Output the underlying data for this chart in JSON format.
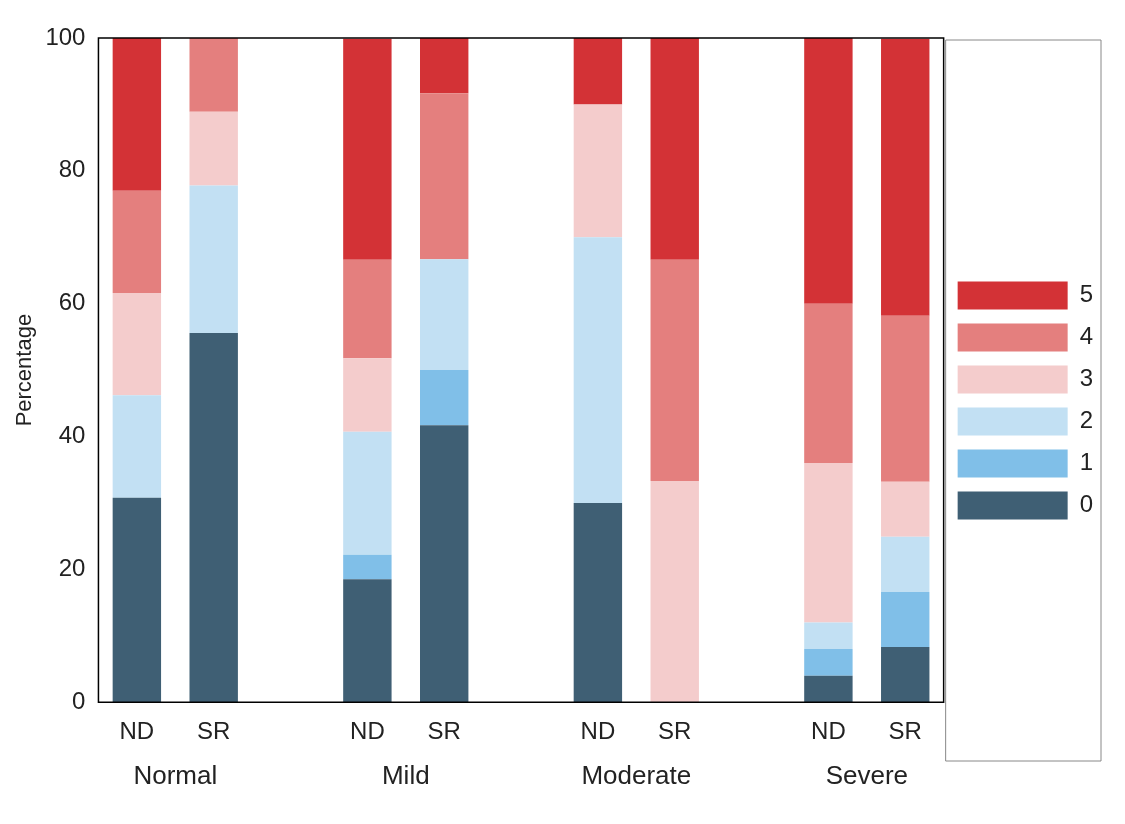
{
  "chart_data": {
    "type": "bar",
    "stacked": true,
    "ylabel": "Percentage",
    "categories": [
      "ND",
      "SR",
      null,
      "ND",
      "SR",
      null,
      "ND",
      "SR",
      null,
      "ND",
      "SR"
    ],
    "series": [
      {
        "name": "0",
        "color": "#3f5f74",
        "values": [
          30.8,
          55.6,
          null,
          18.5,
          41.7,
          null,
          30,
          0,
          null,
          4,
          8.3
        ]
      },
      {
        "name": "1",
        "color": "#80bfe8",
        "values": [
          0,
          0,
          null,
          3.7,
          8.3,
          null,
          0,
          0,
          null,
          4,
          8.3
        ]
      },
      {
        "name": "2",
        "color": "#c2e0f3",
        "values": [
          15.4,
          22.2,
          null,
          18.5,
          16.7,
          null,
          40,
          0,
          null,
          4,
          8.3
        ]
      },
      {
        "name": "3",
        "color": "#f4cccc",
        "values": [
          15.4,
          11.1,
          null,
          11.1,
          0,
          null,
          20,
          33.3,
          null,
          24,
          8.3
        ]
      },
      {
        "name": "4",
        "color": "#e47f7e",
        "values": [
          15.4,
          11.1,
          null,
          14.8,
          25,
          null,
          0,
          33.3,
          null,
          24,
          25
        ]
      },
      {
        "name": "5",
        "color": "#d33236",
        "values": [
          23.1,
          0,
          null,
          33.3,
          8.3,
          null,
          10,
          33.4,
          null,
          40,
          41.7
        ]
      }
    ],
    "ylim": [
      0,
      100
    ],
    "yticks": [
      0,
      20,
      40,
      60,
      80,
      100
    ],
    "grid": false,
    "legend": "right",
    "annotations": [
      "Normal",
      "Mild",
      "Moderate",
      "Severe"
    ]
  }
}
